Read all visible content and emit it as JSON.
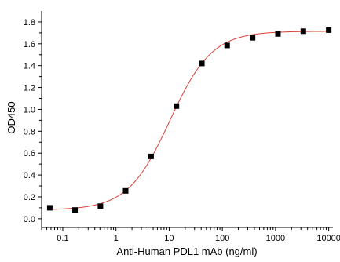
{
  "chart_data": {
    "type": "scatter",
    "title": "",
    "xlabel": "Anti-Human PDL1 mAb (ng/ml)",
    "ylabel": "OD450",
    "x_scale": "log",
    "xlim": [
      0.04,
      12000
    ],
    "ylim": [
      -0.08,
      1.9
    ],
    "x_ticks": [
      0.1,
      1,
      10,
      100,
      1000,
      10000
    ],
    "x_tick_labels": [
      "0.1",
      "1",
      "10",
      "100",
      "1000",
      "10000"
    ],
    "y_ticks": [
      0.0,
      0.2,
      0.4,
      0.6,
      0.8,
      1.0,
      1.2,
      1.4,
      1.6,
      1.8
    ],
    "y_tick_labels": [
      "0.0",
      "0.2",
      "0.4",
      "0.6",
      "0.8",
      "1.0",
      "1.2",
      "1.4",
      "1.6",
      "1.8"
    ],
    "grid": false,
    "series": [
      {
        "marker": "square",
        "color": "#000000",
        "x": [
          0.057,
          0.17,
          0.51,
          1.52,
          4.57,
          13.7,
          41.2,
          123,
          370,
          1111,
          3333,
          10000
        ],
        "y": [
          0.1,
          0.08,
          0.115,
          0.255,
          0.57,
          1.03,
          1.42,
          1.585,
          1.655,
          1.69,
          1.715,
          1.725
        ]
      }
    ],
    "fit_curve": {
      "type": "4PL",
      "color": "#d9413a",
      "bottom": 0.08,
      "top": 1.715,
      "ec50": 10.3,
      "hill": 1.1
    }
  }
}
